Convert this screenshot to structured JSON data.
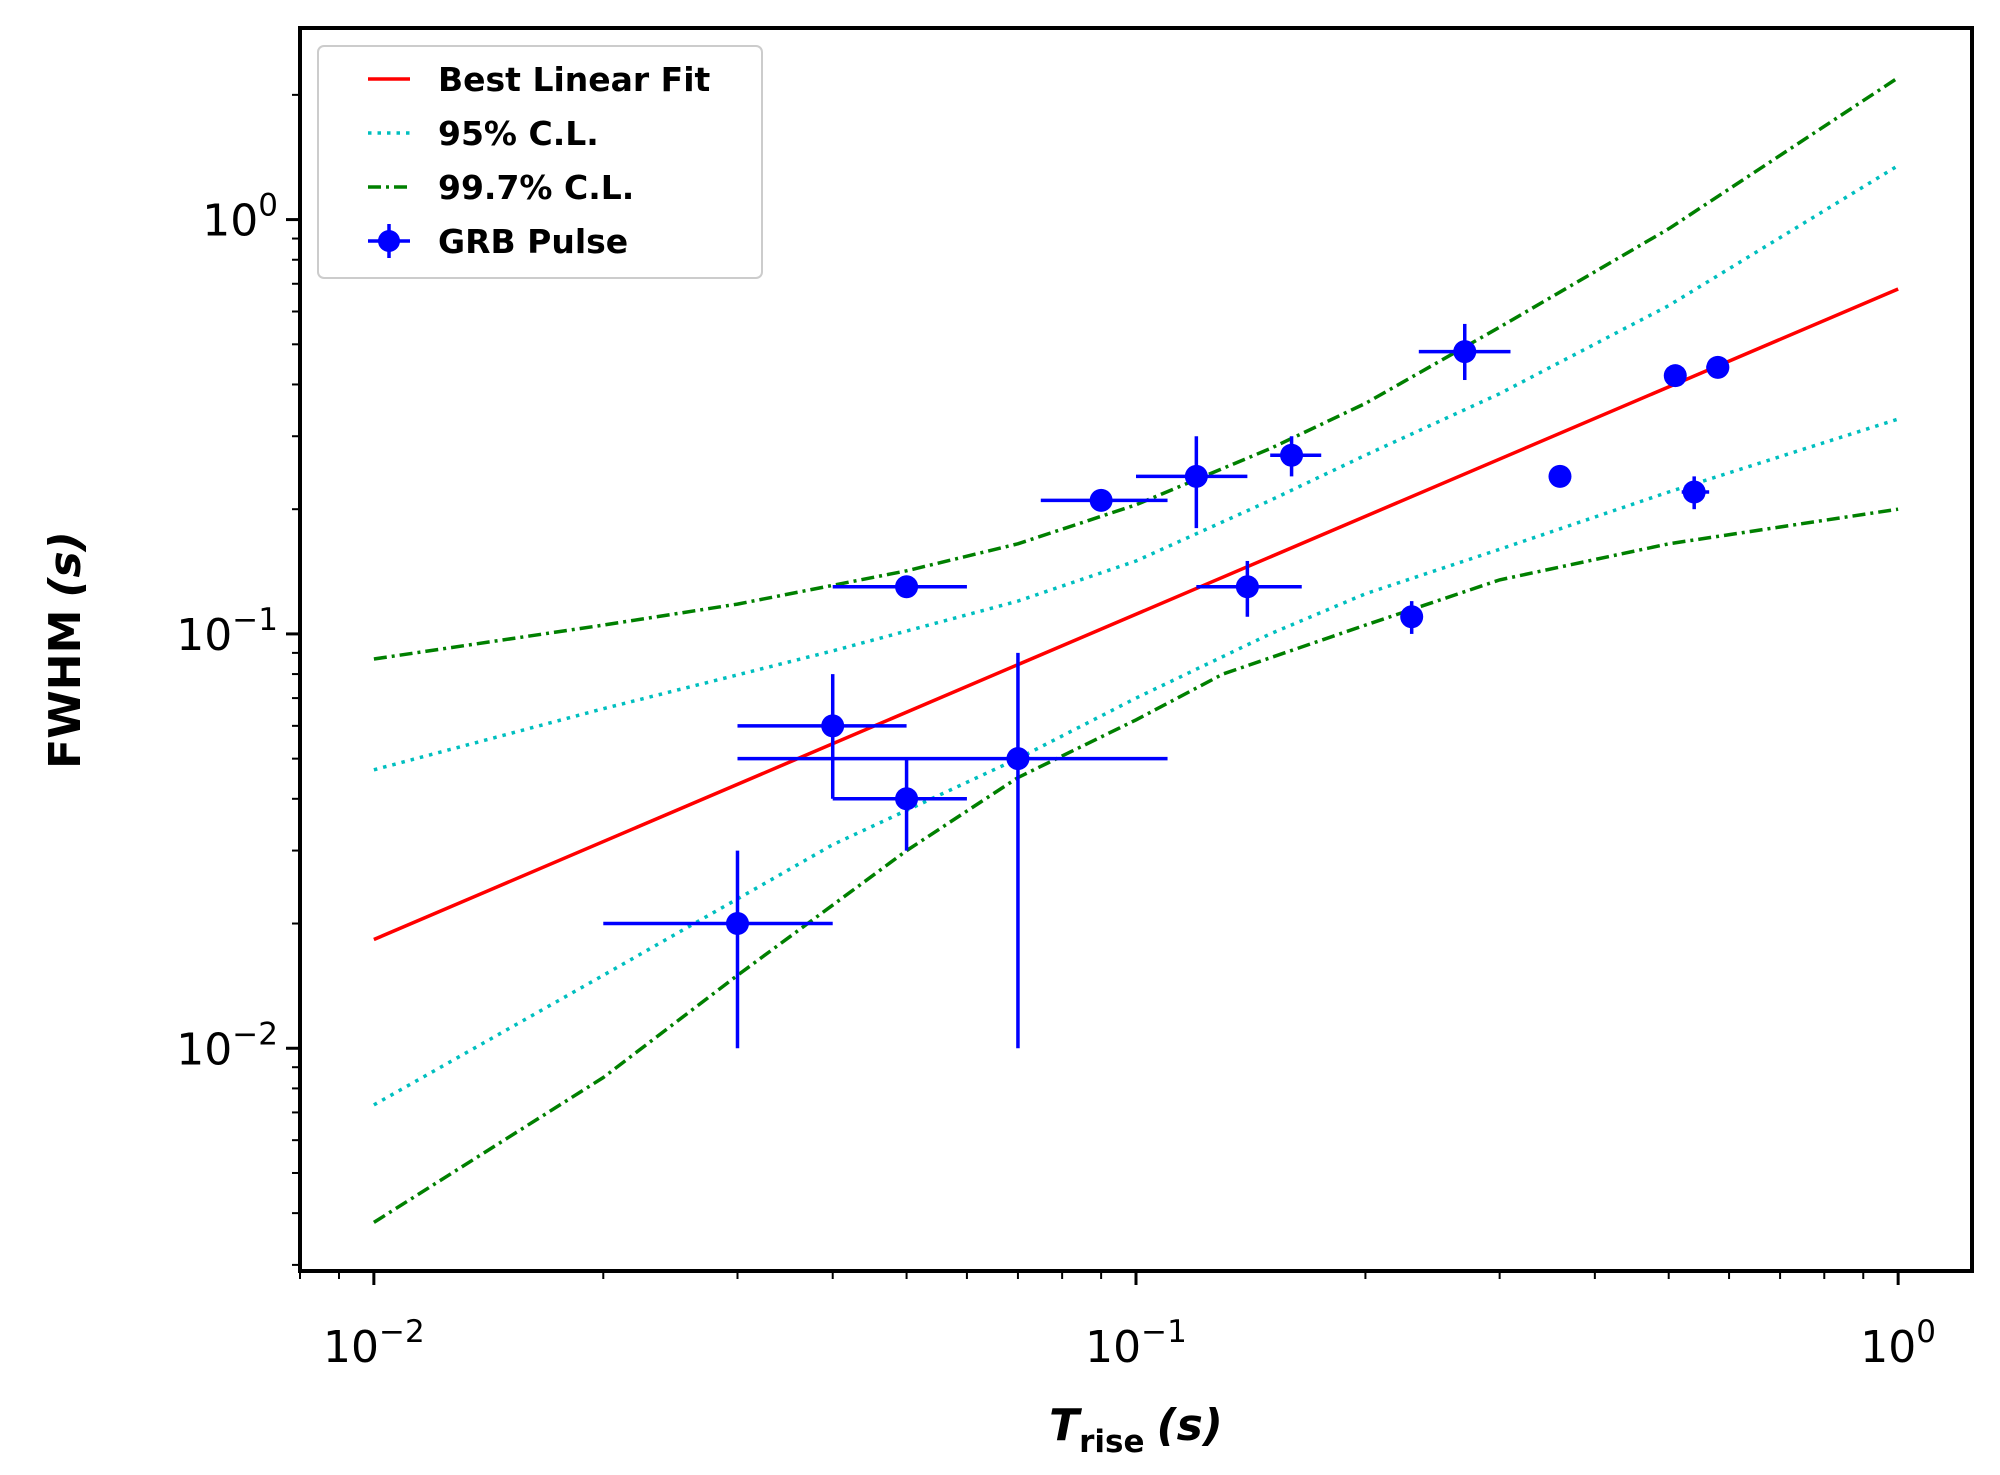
{
  "chart_data": {
    "type": "scatter",
    "x_scale": "log",
    "y_scale": "log",
    "xlim": [
      0.008,
      1.25
    ],
    "ylim": [
      0.0029,
      2.9
    ],
    "xlabel_main": "T",
    "xlabel_sub": "rise",
    "xlabel_unit": "(s)",
    "ylabel_main": "FWHM",
    "ylabel_unit": "(s)",
    "x_ticks": [
      {
        "value": 0.01,
        "base": "10",
        "exp": "−2"
      },
      {
        "value": 0.1,
        "base": "10",
        "exp": "−1"
      },
      {
        "value": 1,
        "base": "10",
        "exp": "0"
      }
    ],
    "y_ticks": [
      {
        "value": 0.01,
        "base": "10",
        "exp": "−2"
      },
      {
        "value": 0.1,
        "base": "10",
        "exp": "−1"
      },
      {
        "value": 1,
        "base": "10",
        "exp": "0"
      }
    ],
    "legend": {
      "position": "top-left",
      "entries": [
        {
          "label": "Best Linear Fit",
          "style": "solid",
          "color": "#ff0000"
        },
        {
          "label": "95% C.L.",
          "style": "dotted",
          "color": "#00bfbf"
        },
        {
          "label": "99.7% C.L.",
          "style": "dashdot",
          "color": "#008000"
        },
        {
          "label": "GRB Pulse",
          "style": "marker",
          "color": "#0000ff"
        }
      ]
    },
    "fit_line": {
      "name": "Best Linear Fit",
      "color": "#ff0000",
      "points": [
        [
          0.01,
          0.0183
        ],
        [
          1.0,
          0.68
        ]
      ]
    },
    "confidence_bands": [
      {
        "name": "95% C.L. upper",
        "color": "#00bfbf",
        "style": "dotted",
        "points": [
          [
            0.01,
            0.047
          ],
          [
            0.02,
            0.066
          ],
          [
            0.04,
            0.091
          ],
          [
            0.07,
            0.12
          ],
          [
            0.1,
            0.15
          ],
          [
            0.15,
            0.21
          ],
          [
            0.2,
            0.27
          ],
          [
            0.3,
            0.38
          ],
          [
            0.5,
            0.62
          ],
          [
            1.0,
            1.35
          ]
        ]
      },
      {
        "name": "95% C.L. lower",
        "color": "#00bfbf",
        "style": "dotted",
        "points": [
          [
            0.01,
            0.0073
          ],
          [
            0.02,
            0.015
          ],
          [
            0.04,
            0.031
          ],
          [
            0.07,
            0.05
          ],
          [
            0.1,
            0.07
          ],
          [
            0.15,
            0.1
          ],
          [
            0.2,
            0.125
          ],
          [
            0.3,
            0.16
          ],
          [
            0.5,
            0.22
          ],
          [
            1.0,
            0.33
          ]
        ]
      },
      {
        "name": "99.7% C.L. upper",
        "color": "#008000",
        "style": "dashdot",
        "points": [
          [
            0.01,
            0.087
          ],
          [
            0.02,
            0.105
          ],
          [
            0.03,
            0.118
          ],
          [
            0.05,
            0.142
          ],
          [
            0.07,
            0.165
          ],
          [
            0.1,
            0.205
          ],
          [
            0.15,
            0.28
          ],
          [
            0.2,
            0.36
          ],
          [
            0.3,
            0.55
          ],
          [
            0.5,
            0.95
          ],
          [
            1.0,
            2.2
          ]
        ]
      },
      {
        "name": "99.7% C.L. lower",
        "color": "#008000",
        "style": "dashdot",
        "points": [
          [
            0.01,
            0.0038
          ],
          [
            0.02,
            0.0085
          ],
          [
            0.03,
            0.015
          ],
          [
            0.05,
            0.03
          ],
          [
            0.07,
            0.045
          ],
          [
            0.1,
            0.062
          ],
          [
            0.13,
            0.08
          ],
          [
            0.2,
            0.105
          ],
          [
            0.3,
            0.135
          ],
          [
            0.5,
            0.165
          ],
          [
            1.0,
            0.2
          ]
        ]
      }
    ],
    "series": [
      {
        "name": "GRB Pulse",
        "color": "#0000ff",
        "points": [
          {
            "x": 0.03,
            "y": 0.02,
            "xerr": [
              0.02,
              0.04
            ],
            "yerr": [
              0.01,
              0.03
            ]
          },
          {
            "x": 0.04,
            "y": 0.06,
            "xerr": [
              0.03,
              0.05
            ],
            "yerr": [
              0.04,
              0.08
            ]
          },
          {
            "x": 0.05,
            "y": 0.04,
            "xerr": [
              0.04,
              0.06
            ],
            "yerr": [
              0.03,
              0.05
            ]
          },
          {
            "x": 0.05,
            "y": 0.13,
            "xerr": [
              0.04,
              0.06
            ],
            "yerr": null
          },
          {
            "x": 0.07,
            "y": 0.05,
            "xerr": [
              0.03,
              0.11
            ],
            "yerr": [
              0.01,
              0.09
            ]
          },
          {
            "x": 0.09,
            "y": 0.21,
            "xerr": [
              0.075,
              0.11
            ],
            "yerr": null
          },
          {
            "x": 0.12,
            "y": 0.24,
            "xerr": [
              0.1,
              0.14
            ],
            "yerr": [
              0.18,
              0.3
            ]
          },
          {
            "x": 0.14,
            "y": 0.13,
            "xerr": [
              0.12,
              0.165
            ],
            "yerr": [
              0.11,
              0.15
            ]
          },
          {
            "x": 0.16,
            "y": 0.27,
            "xerr": [
              0.15,
              0.175
            ],
            "yerr": [
              0.24,
              0.3
            ]
          },
          {
            "x": 0.23,
            "y": 0.11,
            "xerr": null,
            "yerr": [
              0.1,
              0.12
            ]
          },
          {
            "x": 0.27,
            "y": 0.48,
            "xerr": [
              0.235,
              0.31
            ],
            "yerr": [
              0.41,
              0.56
            ]
          },
          {
            "x": 0.36,
            "y": 0.24,
            "xerr": null,
            "yerr": null
          },
          {
            "x": 0.51,
            "y": 0.42,
            "xerr": null,
            "yerr": null
          },
          {
            "x": 0.54,
            "y": 0.22,
            "xerr": [
              0.52,
              0.565
            ],
            "yerr": [
              0.2,
              0.24
            ]
          },
          {
            "x": 0.58,
            "y": 0.44,
            "xerr": [
              0.56,
              0.6
            ],
            "yerr": null
          }
        ]
      }
    ]
  }
}
